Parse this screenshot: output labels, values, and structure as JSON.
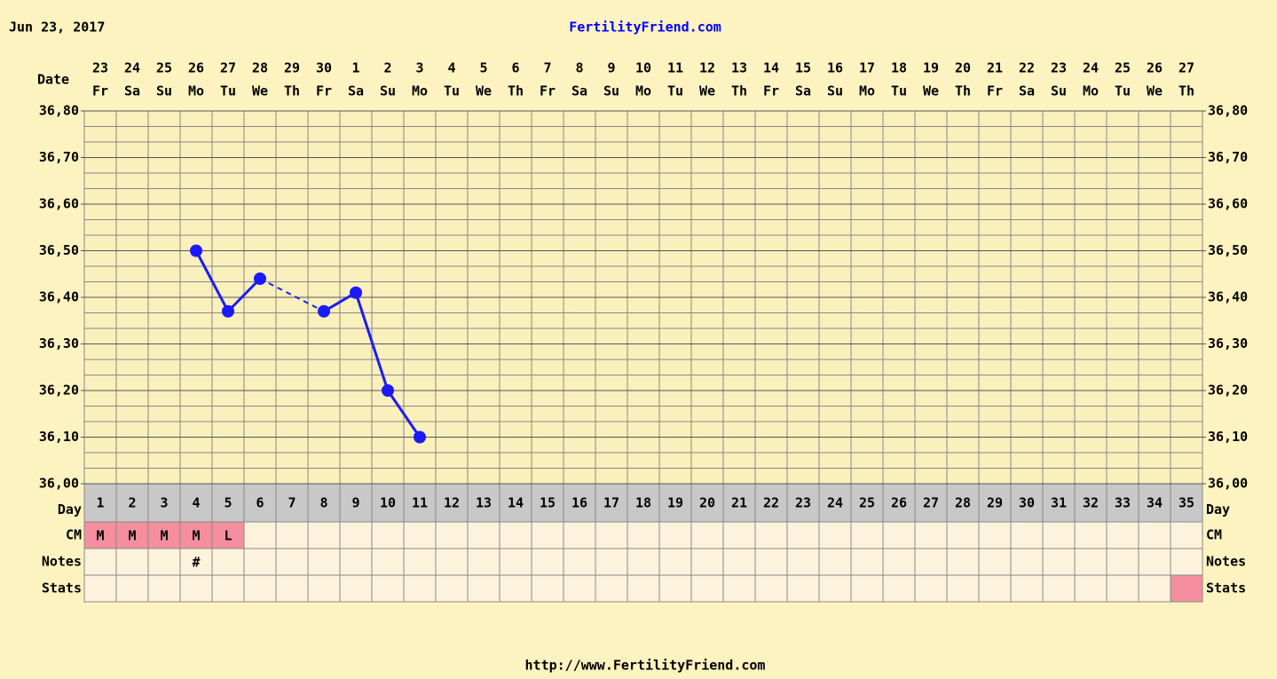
{
  "header": {
    "date": "Jun 23, 2017",
    "site": "FertilityFriend.com"
  },
  "footer": "http://www.FertilityFriend.com",
  "chart_data": {
    "type": "line",
    "row_labels": {
      "date": "Date",
      "day": "Day",
      "cm": "CM",
      "notes": "Notes",
      "stats": "Stats"
    },
    "categories": [
      "23",
      "24",
      "25",
      "26",
      "27",
      "28",
      "29",
      "30",
      "1",
      "2",
      "3",
      "4",
      "5",
      "6",
      "7",
      "8",
      "9",
      "10",
      "11",
      "12",
      "13",
      "14",
      "15",
      "16",
      "17",
      "18",
      "19",
      "20",
      "21",
      "22",
      "23",
      "24",
      "25",
      "26",
      "27"
    ],
    "weekdays": [
      "Fr",
      "Sa",
      "Su",
      "Mo",
      "Tu",
      "We",
      "Th",
      "Fr",
      "Sa",
      "Su",
      "Mo",
      "Tu",
      "We",
      "Th",
      "Fr",
      "Sa",
      "Su",
      "Mo",
      "Tu",
      "We",
      "Th",
      "Fr",
      "Sa",
      "Su",
      "Mo",
      "Tu",
      "We",
      "Th",
      "Fr",
      "Sa",
      "Su",
      "Mo",
      "Tu",
      "We",
      "Th"
    ],
    "days": [
      1,
      2,
      3,
      4,
      5,
      6,
      7,
      8,
      9,
      10,
      11,
      12,
      13,
      14,
      15,
      16,
      17,
      18,
      19,
      20,
      21,
      22,
      23,
      24,
      25,
      26,
      27,
      28,
      29,
      30,
      31,
      32,
      33,
      34,
      35
    ],
    "series": [
      {
        "name": null,
        "color": "#1a1aff",
        "values": [
          null,
          null,
          null,
          36.5,
          36.37,
          36.44,
          null,
          36.37,
          36.41,
          36.2,
          36.1,
          null,
          null,
          null,
          null,
          null,
          null,
          null,
          null,
          null,
          null,
          null,
          null,
          null,
          null,
          null,
          null,
          null,
          null,
          null,
          null,
          null,
          null,
          null,
          null
        ]
      }
    ],
    "cm": [
      "M",
      "M",
      "M",
      "M",
      "L",
      null,
      null,
      null,
      null,
      null,
      null,
      null,
      null,
      null,
      null,
      null,
      null,
      null,
      null,
      null,
      null,
      null,
      null,
      null,
      null,
      null,
      null,
      null,
      null,
      null,
      null,
      null,
      null,
      null,
      null
    ],
    "notes": [
      null,
      null,
      null,
      "#",
      null,
      null,
      null,
      null,
      null,
      null,
      null,
      null,
      null,
      null,
      null,
      null,
      null,
      null,
      null,
      null,
      null,
      null,
      null,
      null,
      null,
      null,
      null,
      null,
      null,
      null,
      null,
      null,
      null,
      null,
      null
    ],
    "ylim": [
      36.0,
      36.8
    ],
    "yticks": [
      {
        "value": 36.0,
        "label": "36,00"
      },
      {
        "value": 36.1,
        "label": "36,10"
      },
      {
        "value": 36.2,
        "label": "36,20"
      },
      {
        "value": 36.3,
        "label": "36,30"
      },
      {
        "value": 36.4,
        "label": "36,40"
      },
      {
        "value": 36.5,
        "label": "36,50"
      },
      {
        "value": 36.6,
        "label": "36,60"
      },
      {
        "value": 36.7,
        "label": "36,70"
      },
      {
        "value": 36.8,
        "label": "36,80"
      }
    ],
    "grid": true
  }
}
